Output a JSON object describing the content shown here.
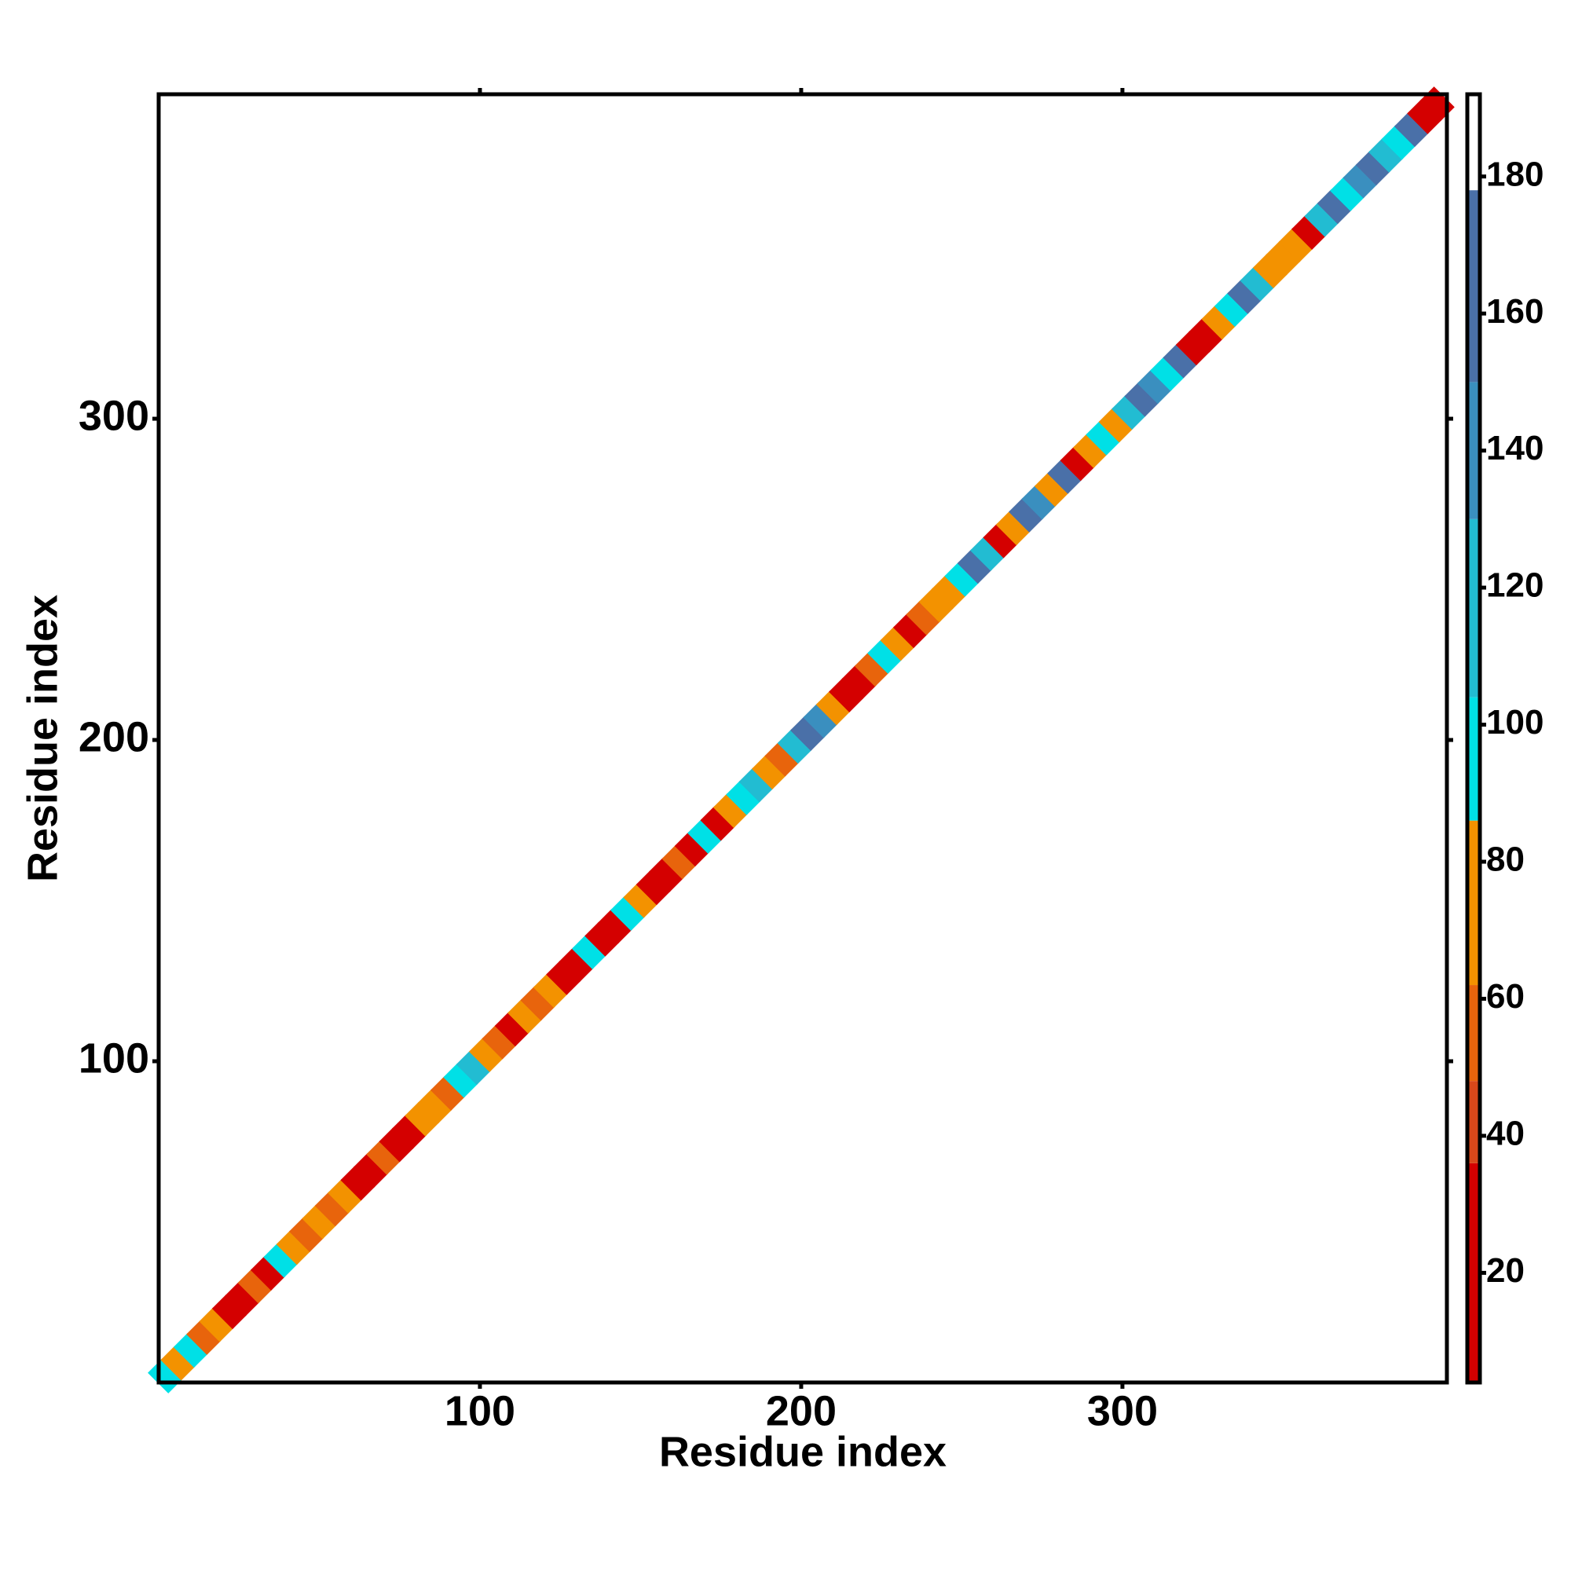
{
  "chart_data": {
    "type": "heatmap",
    "x_label": "Residue index",
    "y_label": "Residue index",
    "xlim": [
      0,
      401
    ],
    "ylim": [
      0,
      401
    ],
    "xticks": [
      100,
      200,
      300
    ],
    "yticks": [
      100,
      200,
      300
    ],
    "x": [
      2,
      6,
      10,
      14,
      18,
      22,
      26,
      30,
      34,
      38,
      42,
      46,
      50,
      54,
      58,
      62,
      66,
      70,
      74,
      78,
      82,
      86,
      90,
      94,
      98,
      102,
      106,
      110,
      114,
      118,
      122,
      126,
      130,
      134,
      138,
      142,
      146,
      150,
      154,
      158,
      162,
      166,
      170,
      174,
      178,
      182,
      186,
      190,
      194,
      198,
      202,
      206,
      210,
      214,
      218,
      222,
      226,
      230,
      234,
      238,
      242,
      246,
      250,
      254,
      258,
      262,
      266,
      270,
      274,
      278,
      282,
      286,
      290,
      294,
      298,
      302,
      306,
      310,
      314,
      318,
      322,
      326,
      330,
      334,
      338,
      342,
      346,
      350,
      354,
      358,
      362,
      366,
      370,
      374,
      378,
      382,
      386,
      390,
      394,
      398
    ],
    "values": [
      100,
      70,
      100,
      60,
      70,
      20,
      15,
      60,
      20,
      100,
      70,
      60,
      70,
      60,
      70,
      20,
      15,
      60,
      20,
      15,
      70,
      75,
      60,
      100,
      105,
      70,
      60,
      20,
      70,
      60,
      70,
      20,
      15,
      100,
      20,
      15,
      100,
      70,
      20,
      15,
      60,
      20,
      100,
      20,
      70,
      100,
      105,
      70,
      60,
      110,
      150,
      140,
      70,
      20,
      15,
      60,
      100,
      70,
      20,
      60,
      70,
      75,
      100,
      150,
      110,
      20,
      70,
      150,
      140,
      70,
      150,
      20,
      70,
      100,
      70,
      110,
      150,
      140,
      100,
      150,
      20,
      15,
      70,
      100,
      150,
      110,
      70,
      75,
      70,
      20,
      110,
      150,
      100,
      140,
      150,
      110,
      100,
      150,
      20,
      15
    ],
    "colorbar": {
      "lim": [
        4,
        192
      ],
      "ticks": [
        20,
        40,
        60,
        80,
        100,
        120,
        140,
        160,
        180
      ],
      "colors": [
        {
          "from": 4,
          "color": "#d40000"
        },
        {
          "from": 36,
          "color": "#d9481a"
        },
        {
          "from": 48,
          "color": "#e8640c"
        },
        {
          "from": 62,
          "color": "#f39200"
        },
        {
          "from": 86,
          "color": "#00e0e6"
        },
        {
          "from": 104,
          "color": "#22bcd2"
        },
        {
          "from": 130,
          "color": "#3a8fbf"
        },
        {
          "from": 150,
          "color": "#4a70a8"
        },
        {
          "from": 178,
          "color": "#ffffff"
        }
      ]
    }
  }
}
